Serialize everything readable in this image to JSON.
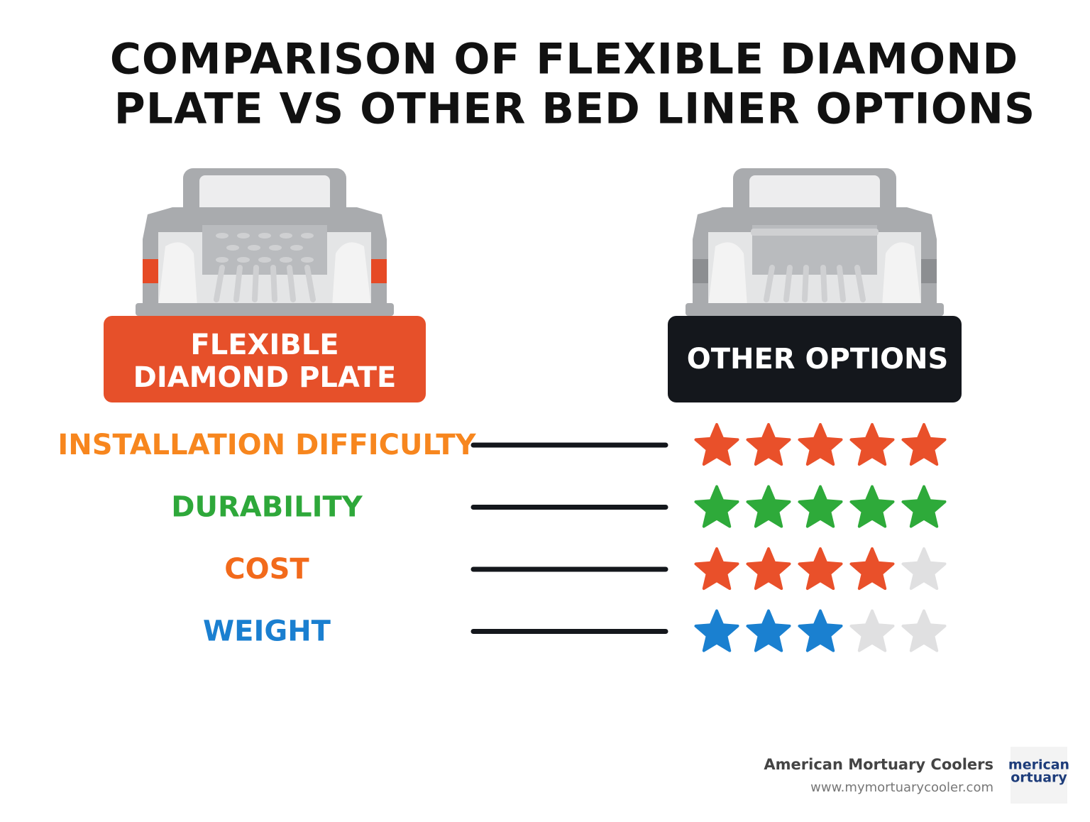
{
  "title_lines": [
    "COMPARISON OF FLEXIBLE DIAMOND",
    "PLATE VS OTHER BED LINER OPTIONS"
  ],
  "left_label_lines": [
    "FLEXIBLE",
    "DIAMOND PLATE"
  ],
  "right_label": "OTHER OPTIONS",
  "stars_max": 5,
  "rows": [
    {
      "label": "INSTALLATION DIFFICULTY",
      "color": "#f7861e",
      "star_color": "#e9502a",
      "rating": 5
    },
    {
      "label": "DURABILITY",
      "color": "#2ea83a",
      "star_color": "#2eaa3a",
      "rating": 5
    },
    {
      "label": "COST",
      "color": "#f26a1b",
      "star_color": "#e9502a",
      "rating": 4
    },
    {
      "label": "WEIGHT",
      "color": "#1a7fd0",
      "star_color": "#1a80d0",
      "rating": 3
    }
  ],
  "footer": {
    "name": "American Mortuary Coolers",
    "url": "www.mymortuarycooler.com",
    "logo_lines": [
      "merican",
      "ortuary"
    ]
  }
}
